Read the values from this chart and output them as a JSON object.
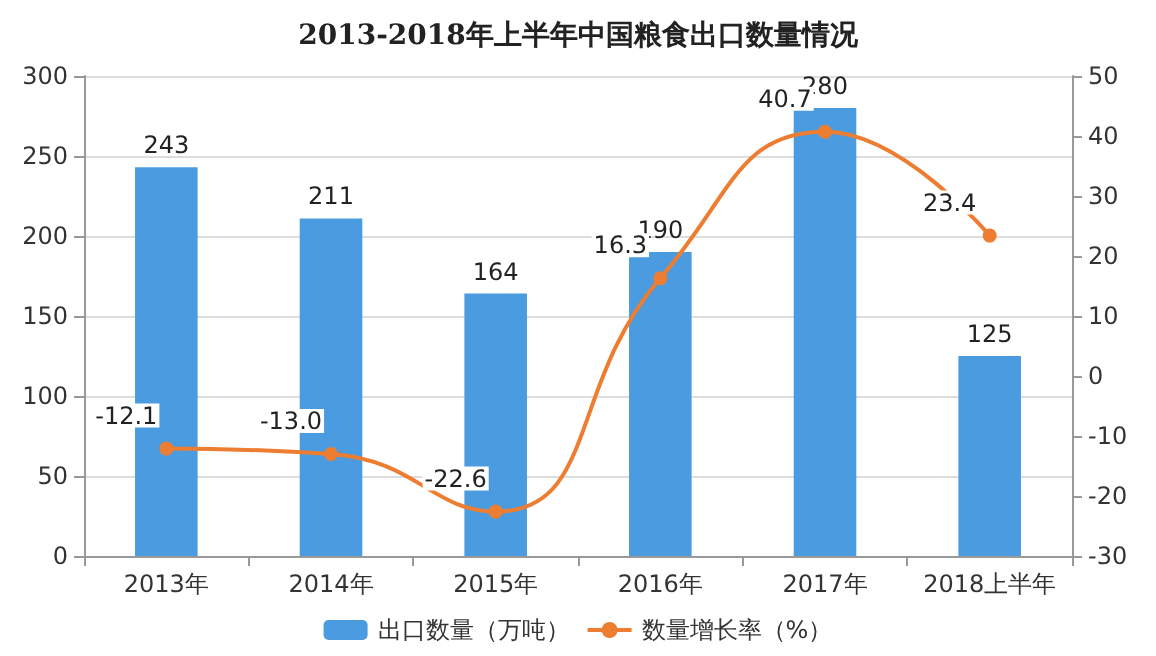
{
  "chart_data": {
    "type": "bar",
    "title": "2013-2018年上半年中国粮食出口数量情况",
    "categories": [
      "2013年",
      "2014年",
      "2015年",
      "2016年",
      "2017年",
      "2018上半年"
    ],
    "series": [
      {
        "name": "出口数量（万吨）",
        "color": "#4a9be0",
        "values": [
          243,
          211,
          164,
          190,
          280,
          125
        ]
      },
      {
        "name": "数量增长率（%）",
        "type": "line",
        "axis": "y2",
        "color": "#ed7d31",
        "marker": "circle",
        "values": [
          -12.1,
          -13.0,
          -22.6,
          16.3,
          40.7,
          23.4
        ],
        "value_labels": [
          "-12.1",
          "-13.0",
          "-22.6",
          "16.3",
          "40.7",
          "23.4"
        ]
      }
    ],
    "data_labels": true,
    "ylim": [
      0,
      300
    ],
    "yticks": [
      0,
      50,
      100,
      150,
      200,
      250,
      300
    ],
    "y2lim": [
      -30,
      50
    ],
    "y2ticks": [
      -30,
      -20,
      -10,
      0,
      10,
      20,
      30,
      40,
      50
    ],
    "grid": "y",
    "legend": "bottom"
  }
}
